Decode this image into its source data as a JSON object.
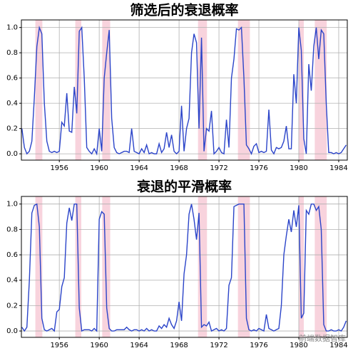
{
  "chart_data": [
    {
      "type": "line",
      "title": "筛选后的衰退概率",
      "x": [
        1952.25,
        1952.5,
        1952.75,
        1953,
        1953.25,
        1953.5,
        1953.75,
        1954,
        1954.25,
        1954.5,
        1954.75,
        1955,
        1955.25,
        1955.5,
        1955.75,
        1956,
        1956.25,
        1956.5,
        1956.75,
        1957,
        1957.25,
        1957.5,
        1957.75,
        1958,
        1958.25,
        1958.5,
        1958.75,
        1959,
        1959.25,
        1959.5,
        1959.75,
        1960,
        1960.25,
        1960.5,
        1960.75,
        1961,
        1961.25,
        1961.5,
        1961.75,
        1962,
        1962.25,
        1962.5,
        1962.75,
        1963,
        1963.25,
        1963.5,
        1963.75,
        1964,
        1964.25,
        1964.5,
        1964.75,
        1965,
        1965.25,
        1965.5,
        1965.75,
        1966,
        1966.25,
        1966.5,
        1966.75,
        1967,
        1967.25,
        1967.5,
        1967.75,
        1968,
        1968.25,
        1968.5,
        1968.75,
        1969,
        1969.25,
        1969.5,
        1969.75,
        1970,
        1970.25,
        1970.5,
        1970.75,
        1971,
        1971.25,
        1971.5,
        1971.75,
        1972,
        1972.25,
        1972.5,
        1972.75,
        1973,
        1973.25,
        1973.5,
        1973.75,
        1974,
        1974.25,
        1974.5,
        1974.75,
        1975,
        1975.25,
        1975.5,
        1975.75,
        1976,
        1976.25,
        1976.5,
        1976.75,
        1977,
        1977.25,
        1977.5,
        1977.75,
        1978,
        1978.25,
        1978.5,
        1978.75,
        1979,
        1979.25,
        1979.5,
        1979.75,
        1980,
        1980.25,
        1980.5,
        1980.75,
        1981,
        1981.25,
        1981.5,
        1981.75,
        1982,
        1982.25,
        1982.5,
        1982.75,
        1983,
        1983.25,
        1983.5,
        1983.75,
        1984,
        1984.25,
        1984.5,
        1984.75
      ],
      "values": [
        0.2,
        0.05,
        0.0,
        0.02,
        0.1,
        0.45,
        0.85,
        1.0,
        0.95,
        0.4,
        0.1,
        0.02,
        0.01,
        0.02,
        0.01,
        0.02,
        0.25,
        0.22,
        0.48,
        0.18,
        0.17,
        0.53,
        0.32,
        0.97,
        1.0,
        0.6,
        0.05,
        0.02,
        0.0,
        0.04,
        0.0,
        0.2,
        0.02,
        0.6,
        0.8,
        0.98,
        0.28,
        0.05,
        0.01,
        0.0,
        0.01,
        0.02,
        0.02,
        0.01,
        0.2,
        0.02,
        0.01,
        0.0,
        0.04,
        0.01,
        0.07,
        0.0,
        0.01,
        0.0,
        0.0,
        0.08,
        0.01,
        0.04,
        0.17,
        0.05,
        0.15,
        0.02,
        0.0,
        0.02,
        0.38,
        0.02,
        0.2,
        0.28,
        0.8,
        0.95,
        0.88,
        0.2,
        0.92,
        0.02,
        0.2,
        0.18,
        0.34,
        0.0,
        0.02,
        0.05,
        0.01,
        0.0,
        0.27,
        0.05,
        0.6,
        0.75,
        0.99,
        0.98,
        1.0,
        0.6,
        0.07,
        0.04,
        0.0,
        0.06,
        0.08,
        0.01,
        0.02,
        0.01,
        0.02,
        0.35,
        0.03,
        0.0,
        0.05,
        0.04,
        0.05,
        0.1,
        0.22,
        0.04,
        0.04,
        0.63,
        0.4,
        1.0,
        0.82,
        0.12,
        0.0,
        0.71,
        0.5,
        0.85,
        1.0,
        0.75,
        0.98,
        0.95,
        0.4,
        0.01,
        0.01,
        0.0,
        0.01,
        0.0,
        0.01,
        0.04,
        0.07
      ],
      "color": "#2b44c9",
      "recessions": [
        [
          1953.6,
          1954.3
        ],
        [
          1957.6,
          1958.2
        ],
        [
          1960.3,
          1961.1
        ],
        [
          1969.9,
          1970.8
        ],
        [
          1973.9,
          1975.1
        ],
        [
          1980.0,
          1980.5
        ],
        [
          1981.6,
          1982.8
        ]
      ],
      "recession_color": "#f8d3dd",
      "xlim": [
        1952.2,
        1984.86
      ],
      "xticks": [
        1956,
        1960,
        1964,
        1968,
        1972,
        1976,
        1980,
        1984
      ],
      "ylim": [
        -0.05,
        1.06
      ],
      "yticks": [
        {
          "value": 0,
          "label": "0.0"
        },
        0.2,
        0.4,
        0.6,
        0.8,
        {
          "value": 1,
          "label": "1.0"
        }
      ],
      "grid": true
    },
    {
      "type": "line",
      "title": "衰退的平滑概率",
      "x": [
        1952.25,
        1952.5,
        1952.75,
        1953,
        1953.25,
        1953.5,
        1953.75,
        1954,
        1954.25,
        1954.5,
        1954.75,
        1955,
        1955.25,
        1955.5,
        1955.75,
        1956,
        1956.25,
        1956.5,
        1956.75,
        1957,
        1957.25,
        1957.5,
        1957.75,
        1958,
        1958.25,
        1958.5,
        1958.75,
        1959,
        1959.25,
        1959.5,
        1959.75,
        1960,
        1960.25,
        1960.5,
        1960.75,
        1961,
        1961.25,
        1961.5,
        1961.75,
        1962,
        1962.25,
        1962.5,
        1962.75,
        1963,
        1963.25,
        1963.5,
        1963.75,
        1964,
        1964.25,
        1964.5,
        1964.75,
        1965,
        1965.25,
        1965.5,
        1965.75,
        1966,
        1966.25,
        1966.5,
        1966.75,
        1967,
        1967.25,
        1967.5,
        1967.75,
        1968,
        1968.25,
        1968.5,
        1968.75,
        1969,
        1969.25,
        1969.5,
        1969.75,
        1970,
        1970.25,
        1970.5,
        1970.75,
        1971,
        1971.25,
        1971.5,
        1971.75,
        1972,
        1972.25,
        1972.5,
        1972.75,
        1973,
        1973.25,
        1973.5,
        1973.75,
        1974,
        1974.25,
        1974.5,
        1974.75,
        1975,
        1975.25,
        1975.5,
        1975.75,
        1976,
        1976.25,
        1976.5,
        1976.75,
        1977,
        1977.25,
        1977.5,
        1977.75,
        1978,
        1978.25,
        1978.5,
        1978.75,
        1979,
        1979.25,
        1979.5,
        1979.75,
        1980,
        1980.25,
        1980.5,
        1980.75,
        1981,
        1981.25,
        1981.5,
        1981.75,
        1982,
        1982.25,
        1982.5,
        1982.75,
        1983,
        1983.25,
        1983.5,
        1983.75,
        1984,
        1984.25,
        1984.5,
        1984.75
      ],
      "values": [
        0.03,
        0.0,
        0.03,
        0.4,
        0.93,
        0.99,
        1.0,
        0.82,
        0.1,
        0.01,
        0.0,
        0.01,
        0.02,
        0.0,
        0.15,
        0.17,
        0.35,
        0.42,
        0.85,
        0.97,
        0.87,
        1.0,
        1.0,
        0.18,
        0.0,
        0.01,
        0.01,
        0.01,
        0.0,
        0.02,
        0.0,
        0.88,
        0.94,
        0.92,
        0.18,
        0.02,
        0.0,
        0.0,
        0.01,
        0.01,
        0.01,
        0.01,
        0.03,
        0.01,
        0.0,
        0.01,
        0.01,
        0.0,
        0.01,
        0.0,
        0.02,
        0.0,
        0.01,
        0.0,
        0.0,
        0.04,
        0.02,
        0.05,
        0.03,
        0.1,
        0.05,
        0.02,
        0.08,
        0.23,
        0.08,
        0.45,
        0.6,
        0.92,
        1.0,
        0.88,
        0.72,
        0.93,
        0.03,
        0.05,
        0.04,
        0.07,
        0.0,
        0.01,
        0.02,
        0.0,
        0.01,
        0.0,
        0.02,
        0.36,
        0.42,
        0.98,
        0.99,
        1.0,
        1.0,
        1.0,
        0.1,
        0.01,
        0.0,
        0.01,
        0.0,
        0.02,
        0.01,
        0.0,
        0.13,
        0.02,
        0.01,
        0.0,
        0.01,
        0.02,
        0.2,
        0.6,
        0.75,
        0.88,
        0.78,
        0.95,
        0.82,
        0.99,
        0.1,
        0.14,
        0.95,
        0.92,
        1.0,
        1.0,
        0.95,
        0.98,
        0.8,
        0.05,
        0.0,
        0.0,
        0.01,
        0.0,
        0.0,
        0.01,
        0.0,
        0.03,
        0.08
      ],
      "color": "#2b44c9",
      "recessions": [
        [
          1953.6,
          1954.3
        ],
        [
          1957.6,
          1958.2
        ],
        [
          1960.3,
          1961.1
        ],
        [
          1969.9,
          1970.8
        ],
        [
          1973.9,
          1975.1
        ],
        [
          1980.0,
          1980.5
        ],
        [
          1981.6,
          1982.8
        ]
      ],
      "recession_color": "#f8d3dd",
      "xlim": [
        1952.2,
        1984.86
      ],
      "xticks": [
        1956,
        1960,
        1964,
        1968,
        1972,
        1976,
        1980,
        1984
      ],
      "ylim": [
        -0.05,
        1.06
      ],
      "yticks": [
        {
          "value": 0,
          "label": "0.0"
        },
        0.2,
        0.4,
        0.6,
        0.8,
        {
          "value": 1,
          "label": "1.0"
        }
      ],
      "grid": true
    }
  ],
  "watermark": "前端数据智库"
}
